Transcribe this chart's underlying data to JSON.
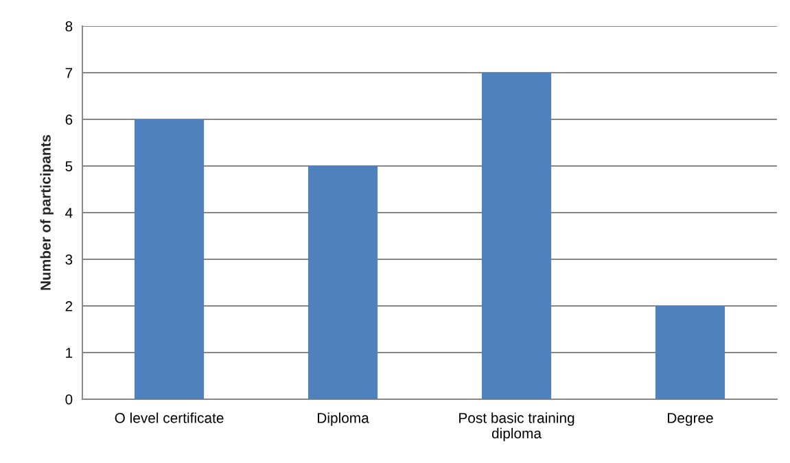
{
  "chart_data": {
    "type": "bar",
    "ylabel": "Number of participants",
    "categories": [
      "O level certificate",
      "Diploma",
      "Post basic training\ndiploma",
      "Degree"
    ],
    "values": [
      6,
      5,
      7,
      2
    ],
    "color": "#4f81bd",
    "ylim": [
      0,
      8
    ],
    "yticks": [
      0,
      1,
      2,
      3,
      4,
      5,
      6,
      7,
      8
    ],
    "grid": "y",
    "legend": false
  }
}
